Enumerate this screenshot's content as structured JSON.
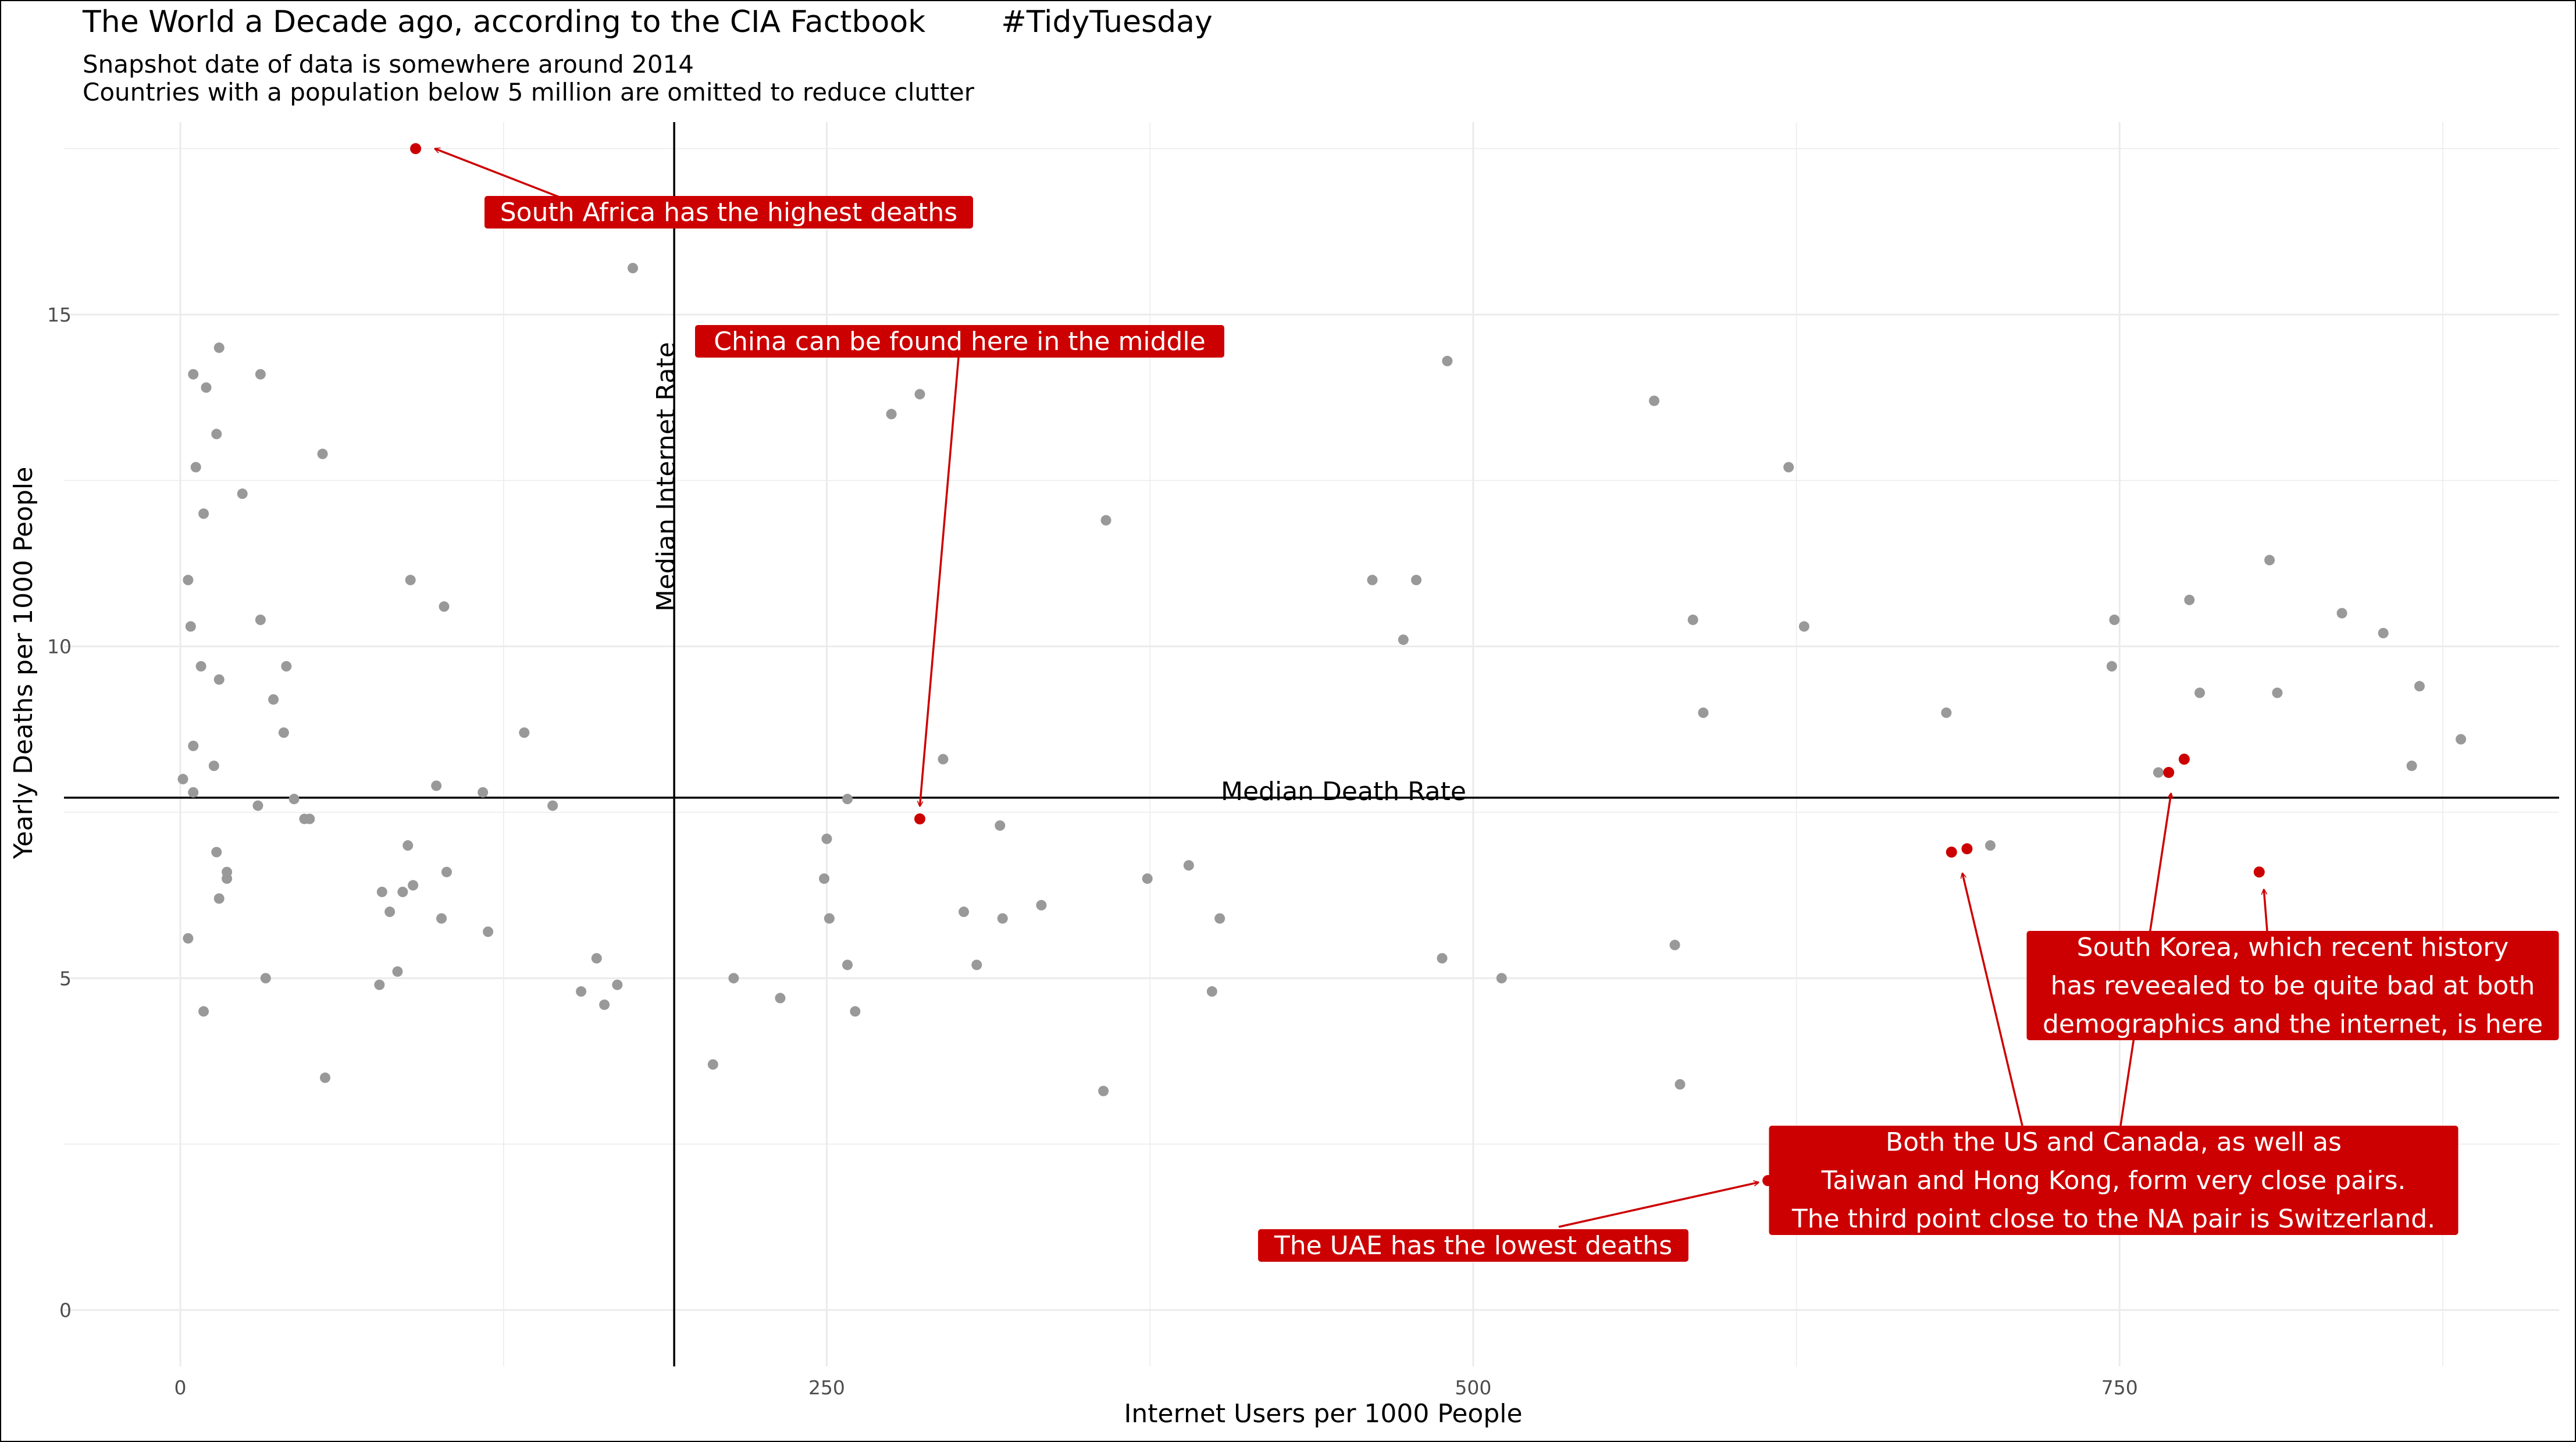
{
  "header": {
    "title": "The World a Decade ago, according to the CIA Factbook",
    "hashtag": "#TidyTuesday",
    "subtitle_1": "Snapshot date of data is somewhere around 2014",
    "subtitle_2": "Countries with a population below 5 million are omitted to reduce clutter"
  },
  "colors": {
    "point": "#999999",
    "highlight": "#cc0000",
    "grid": "#ebebeb",
    "reference_line": "#000000"
  },
  "chart_data": {
    "type": "scatter",
    "xlabel": "Internet Users per 1000 People",
    "ylabel": "Yearly Deaths per 1000 People",
    "xlim": [
      -45,
      920
    ],
    "ylim": [
      -0.85,
      17.9
    ],
    "x_ticks": [
      0,
      250,
      500,
      750
    ],
    "y_ticks": [
      0,
      5,
      10,
      15
    ],
    "grid": true,
    "reference_lines": {
      "vline": {
        "x": 191,
        "label": "Median Internet Rate"
      },
      "hline": {
        "y": 7.72,
        "label": "Median Death Rate"
      }
    },
    "points": [
      [
        1,
        8.0
      ],
      [
        3,
        11.0
      ],
      [
        3,
        5.6
      ],
      [
        4,
        10.3
      ],
      [
        5,
        14.1
      ],
      [
        5,
        8.5
      ],
      [
        5,
        7.8
      ],
      [
        6,
        12.7
      ],
      [
        8,
        9.7
      ],
      [
        9,
        12.0
      ],
      [
        9,
        4.5
      ],
      [
        10,
        13.9
      ],
      [
        13,
        8.2
      ],
      [
        14,
        6.9
      ],
      [
        14,
        13.2
      ],
      [
        15,
        14.5
      ],
      [
        15,
        9.5
      ],
      [
        15,
        6.2
      ],
      [
        18,
        6.6
      ],
      [
        18,
        6.5
      ],
      [
        24,
        12.3
      ],
      [
        30,
        7.6
      ],
      [
        31,
        10.4
      ],
      [
        31,
        14.1
      ],
      [
        33,
        5.0
      ],
      [
        36,
        9.2
      ],
      [
        40,
        8.7
      ],
      [
        41,
        9.7
      ],
      [
        44,
        7.7
      ],
      [
        48,
        7.4
      ],
      [
        50,
        7.4
      ],
      [
        55,
        12.9
      ],
      [
        56,
        3.5
      ],
      [
        77,
        4.9
      ],
      [
        78,
        6.3
      ],
      [
        81,
        6.0
      ],
      [
        84,
        5.1
      ],
      [
        86,
        6.3
      ],
      [
        88,
        7.0
      ],
      [
        89,
        11.0
      ],
      [
        90,
        6.4
      ],
      [
        99,
        7.9
      ],
      [
        101,
        5.9
      ],
      [
        102,
        10.6
      ],
      [
        103,
        6.6
      ],
      [
        119,
        5.7
      ],
      [
        117,
        7.8
      ],
      [
        133,
        8.7
      ],
      [
        144,
        7.6
      ],
      [
        155,
        4.8
      ],
      [
        161,
        5.3
      ],
      [
        164,
        4.6
      ],
      [
        169,
        4.9
      ],
      [
        175,
        15.7
      ],
      [
        206,
        3.7
      ],
      [
        214,
        5.0
      ],
      [
        232,
        4.7
      ],
      [
        249,
        6.5
      ],
      [
        250,
        7.1
      ],
      [
        251,
        5.9
      ],
      [
        258,
        5.2
      ],
      [
        258,
        7.7
      ],
      [
        261,
        4.5
      ],
      [
        275,
        13.5
      ],
      [
        286,
        13.8
      ],
      [
        295,
        8.3
      ],
      [
        303,
        6.0
      ],
      [
        308,
        5.2
      ],
      [
        317,
        7.3
      ],
      [
        318,
        5.9
      ],
      [
        333,
        6.1
      ],
      [
        358,
        11.9
      ],
      [
        357,
        3.3
      ],
      [
        374,
        6.5
      ],
      [
        390,
        6.7
      ],
      [
        399,
        4.8
      ],
      [
        402,
        5.9
      ],
      [
        461,
        11.0
      ],
      [
        473,
        10.1
      ],
      [
        478,
        11.0
      ],
      [
        488,
        5.3
      ],
      [
        490,
        14.3
      ],
      [
        511,
        5.0
      ],
      [
        570,
        13.7
      ],
      [
        578,
        5.5
      ],
      [
        580,
        3.4
      ],
      [
        585,
        10.4
      ],
      [
        589,
        9.0
      ],
      [
        622,
        12.7
      ],
      [
        628,
        10.3
      ],
      [
        683,
        9.0
      ],
      [
        700,
        7.0
      ],
      [
        747,
        9.7
      ],
      [
        748,
        10.4
      ],
      [
        765,
        8.1
      ],
      [
        777,
        10.7
      ],
      [
        781,
        9.3
      ],
      [
        808,
        11.3
      ],
      [
        811,
        9.3
      ],
      [
        836,
        10.5
      ],
      [
        852,
        10.2
      ],
      [
        863,
        8.2
      ],
      [
        866,
        9.4
      ],
      [
        882,
        8.6
      ]
    ],
    "highlight_points": [
      [
        91,
        17.5
      ],
      [
        286,
        7.4
      ],
      [
        614,
        1.95
      ],
      [
        685,
        6.9
      ],
      [
        691,
        6.95
      ],
      [
        769,
        8.1
      ],
      [
        775,
        8.3
      ],
      [
        804,
        6.6
      ]
    ],
    "annotations": [
      {
        "lines": [
          "South Africa has the highest deaths"
        ]
      },
      {
        "lines": [
          "China can be found here in the middle"
        ]
      },
      {
        "lines": [
          "The UAE has the lowest deaths"
        ]
      },
      {
        "lines": [
          "Both the US and Canada, as well as",
          "Taiwan and Hong Kong, form very close pairs.",
          "The third point close to the NA pair is Switzerland."
        ]
      },
      {
        "lines": [
          "South Korea, which recent history",
          "has reveealed to be quite bad at both",
          "demographics and the internet, is here"
        ]
      }
    ]
  }
}
